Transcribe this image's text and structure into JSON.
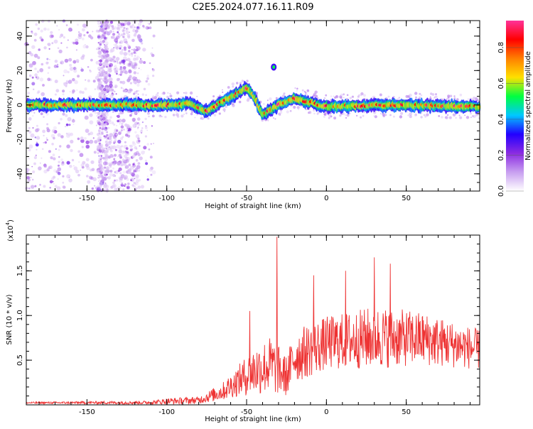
{
  "title": "C2E5.2024.077.16.11.R09",
  "colors": {
    "snr_line": "#ee3333",
    "axis": "#000000",
    "colormap": [
      "#ffffff",
      "#c89ff0",
      "#8b2be2",
      "#2200ff",
      "#00c8ff",
      "#00ff40",
      "#ffe000",
      "#ff8000",
      "#ff0000",
      "#ff3399"
    ]
  },
  "chart_data": [
    {
      "type": "heatmap",
      "xlabel": "Height of straight line (km)",
      "ylabel": "Frequency (Hz)",
      "xlim": [
        -188,
        96
      ],
      "ylim": [
        -50,
        49
      ],
      "x_ticks": [
        -150,
        -100,
        -50,
        0,
        50
      ],
      "y_ticks": [
        -40,
        -20,
        0,
        20,
        40
      ],
      "colorbar": {
        "label": "Normalized spectral amplitude",
        "range": [
          0,
          0.95
        ],
        "ticks": [
          0.0,
          0.2,
          0.4,
          0.6,
          0.8
        ]
      },
      "ridge": [
        {
          "x": -188,
          "y": 0
        },
        {
          "x": -110,
          "y": 0
        },
        {
          "x": -95,
          "y": 0
        },
        {
          "x": -85,
          "y": 1
        },
        {
          "x": -75,
          "y": -4
        },
        {
          "x": -65,
          "y": 2
        },
        {
          "x": -55,
          "y": 7
        },
        {
          "x": -50,
          "y": 10
        },
        {
          "x": -45,
          "y": 4
        },
        {
          "x": -40,
          "y": -6
        },
        {
          "x": -30,
          "y": 0
        },
        {
          "x": -20,
          "y": 4
        },
        {
          "x": 0,
          "y": -1
        },
        {
          "x": 40,
          "y": 0
        },
        {
          "x": 96,
          "y": -1
        }
      ],
      "features": [
        {
          "x": -33,
          "y": 22,
          "note": "isolated spot"
        }
      ]
    },
    {
      "type": "line",
      "xlabel": "Height of straight line (km)",
      "ylabel": "SNR (10 * v/v)",
      "multiplier": "(x10",
      "multiplier_exp": "4",
      "multiplier_close": ")",
      "xlim": [
        -188,
        96
      ],
      "ylim": [
        0,
        1.9
      ],
      "x_ticks": [
        -150,
        -100,
        -50,
        0,
        50
      ],
      "y_ticks": [
        0.5,
        1.0,
        1.5
      ],
      "series": [
        {
          "envelope": [
            {
              "x": -188,
              "base": 0.02,
              "amp": 0.02
            },
            {
              "x": -110,
              "base": 0.02,
              "amp": 0.04
            },
            {
              "x": -100,
              "base": 0.03,
              "amp": 0.07
            },
            {
              "x": -80,
              "base": 0.04,
              "amp": 0.08
            },
            {
              "x": -65,
              "base": 0.12,
              "amp": 0.2
            },
            {
              "x": -55,
              "base": 0.22,
              "amp": 0.35
            },
            {
              "x": -45,
              "base": 0.3,
              "amp": 0.55
            },
            {
              "x": -35,
              "base": 0.35,
              "amp": 0.65
            },
            {
              "x": -25,
              "base": 0.25,
              "amp": 0.45
            },
            {
              "x": -20,
              "base": 0.45,
              "amp": 0.6
            },
            {
              "x": 0,
              "base": 0.6,
              "amp": 0.6
            },
            {
              "x": 30,
              "base": 0.65,
              "amp": 0.7
            },
            {
              "x": 60,
              "base": 0.65,
              "amp": 0.6
            },
            {
              "x": 96,
              "base": 0.55,
              "amp": 0.45
            }
          ],
          "spikes": [
            {
              "x": -31,
              "y": 1.88
            },
            {
              "x": -48,
              "y": 1.05
            },
            {
              "x": -8,
              "y": 1.45
            },
            {
              "x": 30,
              "y": 1.65
            },
            {
              "x": 40,
              "y": 1.58
            },
            {
              "x": 12,
              "y": 1.5
            }
          ]
        }
      ]
    }
  ]
}
